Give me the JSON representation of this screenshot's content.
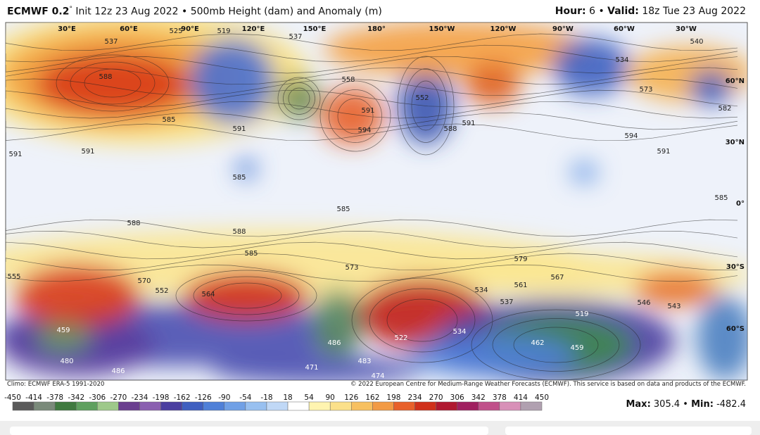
{
  "header": {
    "model": "ECMWF 0.2",
    "degree": "°",
    "init": "Init 12z 23 Aug 2022",
    "separator": "•",
    "title": "500mb Height (dam) and Anomaly (m)",
    "hour_label": "Hour:",
    "hour": "6",
    "valid_label": "Valid:",
    "valid": "18z Tue 23 Aug 2022"
  },
  "map": {
    "longitude_labels": [
      "30°E",
      "60°E",
      "90°E",
      "120°E",
      "150°E",
      "180°",
      "150°W",
      "120°W",
      "90°W",
      "60°W",
      "30°W"
    ],
    "latitude_labels": [
      "60°N",
      "30°N",
      "0°",
      "30°S",
      "60°S"
    ],
    "contour_labels": [
      "588",
      "537",
      "525",
      "519",
      "537",
      "558",
      "591",
      "594",
      "591",
      "585",
      "591",
      "591",
      "585",
      "585",
      "588",
      "588",
      "585",
      "573",
      "579",
      "561",
      "567",
      "534",
      "564",
      "570",
      "552",
      "537",
      "519",
      "546",
      "543",
      "522",
      "534",
      "462",
      "459",
      "486",
      "471",
      "480",
      "486",
      "459",
      "474",
      "483",
      "591",
      "588",
      "594",
      "591",
      "585",
      "573",
      "582",
      "540",
      "534",
      "552",
      "555"
    ]
  },
  "footer": {
    "climo": "Climo: ECMWF ERA-5 1991-2020",
    "copyright": "© 2022 European Centre for Medium-Range Weather Forecasts (ECMWF). This service is based on data and products of the ECMWF."
  },
  "colorbar": {
    "labels": [
      -450,
      -414,
      -378,
      -342,
      -306,
      -270,
      -234,
      -198,
      -162,
      -126,
      -90,
      -54,
      -18,
      18,
      54,
      90,
      126,
      162,
      198,
      234,
      270,
      306,
      342,
      378,
      414,
      450
    ],
    "colors": [
      "#5a5a5a",
      "#7a8a7a",
      "#3f7a3f",
      "#5fa05f",
      "#9ec98a",
      "#6a3f8f",
      "#8a5fb0",
      "#4b3fa0",
      "#3f5fc0",
      "#4f80d8",
      "#70a0e6",
      "#98c0f0",
      "#c0d8f6",
      "#ffffff",
      "#fff4b0",
      "#fbe08a",
      "#f7c060",
      "#f29a45",
      "#e8602a",
      "#d0301a",
      "#b01830",
      "#a02060",
      "#c0508a",
      "#d890b8",
      "#b0a0b0"
    ]
  },
  "stats": {
    "max_label": "Max:",
    "max": "305.4",
    "separator": "•",
    "min_label": "Min:",
    "min": "-482.4"
  }
}
